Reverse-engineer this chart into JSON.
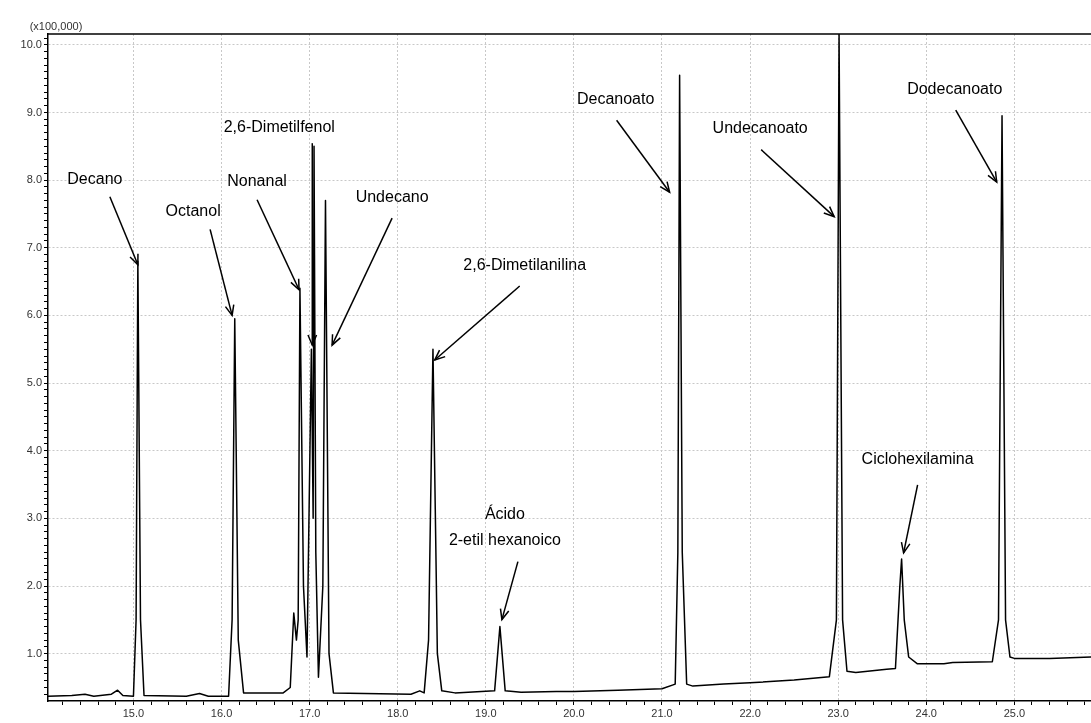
{
  "chart_data": {
    "type": "line",
    "ylabel": "(x100,000)",
    "xlim": [
      14.03,
      25.87
    ],
    "ylim": [
      0.3,
      10.16
    ],
    "xticks": [
      {
        "value": 14.2,
        "label": null
      },
      {
        "value": 14.4,
        "label": null
      },
      {
        "value": 14.6,
        "label": null
      },
      {
        "value": 14.8,
        "label": null
      },
      {
        "value": 15,
        "label": "15.0"
      },
      {
        "value": 15.2,
        "label": null
      },
      {
        "value": 15.4,
        "label": null
      },
      {
        "value": 15.6,
        "label": null
      },
      {
        "value": 15.8,
        "label": null
      },
      {
        "value": 16,
        "label": "16.0"
      },
      {
        "value": 16.2,
        "label": null
      },
      {
        "value": 16.4,
        "label": null
      },
      {
        "value": 16.6,
        "label": null
      },
      {
        "value": 16.8,
        "label": null
      },
      {
        "value": 17,
        "label": "17.0"
      },
      {
        "value": 17.2,
        "label": null
      },
      {
        "value": 17.4,
        "label": null
      },
      {
        "value": 17.6,
        "label": null
      },
      {
        "value": 17.8,
        "label": null
      },
      {
        "value": 18,
        "label": "18.0"
      },
      {
        "value": 18.2,
        "label": null
      },
      {
        "value": 18.4,
        "label": null
      },
      {
        "value": 18.6,
        "label": null
      },
      {
        "value": 18.8,
        "label": null
      },
      {
        "value": 19,
        "label": "19.0"
      },
      {
        "value": 19.2,
        "label": null
      },
      {
        "value": 19.4,
        "label": null
      },
      {
        "value": 19.6,
        "label": null
      },
      {
        "value": 19.8,
        "label": null
      },
      {
        "value": 20,
        "label": "20.0"
      },
      {
        "value": 20.2,
        "label": null
      },
      {
        "value": 20.4,
        "label": null
      },
      {
        "value": 20.6,
        "label": null
      },
      {
        "value": 20.8,
        "label": null
      },
      {
        "value": 21,
        "label": "21.0"
      },
      {
        "value": 21.2,
        "label": null
      },
      {
        "value": 21.4,
        "label": null
      },
      {
        "value": 21.6,
        "label": null
      },
      {
        "value": 21.8,
        "label": null
      },
      {
        "value": 22,
        "label": "22.0"
      },
      {
        "value": 22.2,
        "label": null
      },
      {
        "value": 22.4,
        "label": null
      },
      {
        "value": 22.6,
        "label": null
      },
      {
        "value": 22.8,
        "label": null
      },
      {
        "value": 23,
        "label": "23.0"
      },
      {
        "value": 23.2,
        "label": null
      },
      {
        "value": 23.4,
        "label": null
      },
      {
        "value": 23.6,
        "label": null
      },
      {
        "value": 23.8,
        "label": null
      },
      {
        "value": 24,
        "label": "24.0"
      },
      {
        "value": 24.2,
        "label": null
      },
      {
        "value": 24.4,
        "label": null
      },
      {
        "value": 24.6,
        "label": null
      },
      {
        "value": 24.8,
        "label": null
      },
      {
        "value": 25,
        "label": "25.0"
      },
      {
        "value": 25.2,
        "label": null
      },
      {
        "value": 25.4,
        "label": null
      },
      {
        "value": 25.6,
        "label": null
      },
      {
        "value": 25.8,
        "label": null
      }
    ],
    "yticks": [
      {
        "value": 0.4,
        "label": null
      },
      {
        "value": 0.5,
        "label": null
      },
      {
        "value": 0.6,
        "label": null
      },
      {
        "value": 0.7,
        "label": null
      },
      {
        "value": 0.8,
        "label": null
      },
      {
        "value": 0.9,
        "label": null
      },
      {
        "value": 1,
        "label": "1.0"
      },
      {
        "value": 1.1,
        "label": null
      },
      {
        "value": 1.2,
        "label": null
      },
      {
        "value": 1.3,
        "label": null
      },
      {
        "value": 1.4,
        "label": null
      },
      {
        "value": 1.5,
        "label": null
      },
      {
        "value": 1.6,
        "label": null
      },
      {
        "value": 1.7,
        "label": null
      },
      {
        "value": 1.8,
        "label": null
      },
      {
        "value": 1.9,
        "label": null
      },
      {
        "value": 2,
        "label": "2.0"
      },
      {
        "value": 2.1,
        "label": null
      },
      {
        "value": 2.2,
        "label": null
      },
      {
        "value": 2.3,
        "label": null
      },
      {
        "value": 2.4,
        "label": null
      },
      {
        "value": 2.5,
        "label": null
      },
      {
        "value": 2.6,
        "label": null
      },
      {
        "value": 2.7,
        "label": null
      },
      {
        "value": 2.8,
        "label": null
      },
      {
        "value": 2.9,
        "label": null
      },
      {
        "value": 3,
        "label": "3.0"
      },
      {
        "value": 3.1,
        "label": null
      },
      {
        "value": 3.2,
        "label": null
      },
      {
        "value": 3.3,
        "label": null
      },
      {
        "value": 3.4,
        "label": null
      },
      {
        "value": 3.5,
        "label": null
      },
      {
        "value": 3.6,
        "label": null
      },
      {
        "value": 3.7,
        "label": null
      },
      {
        "value": 3.8,
        "label": null
      },
      {
        "value": 3.9,
        "label": null
      },
      {
        "value": 4,
        "label": "4.0"
      },
      {
        "value": 4.1,
        "label": null
      },
      {
        "value": 4.2,
        "label": null
      },
      {
        "value": 4.3,
        "label": null
      },
      {
        "value": 4.4,
        "label": null
      },
      {
        "value": 4.5,
        "label": null
      },
      {
        "value": 4.6,
        "label": null
      },
      {
        "value": 4.7,
        "label": null
      },
      {
        "value": 4.8,
        "label": null
      },
      {
        "value": 4.9,
        "label": null
      },
      {
        "value": 5,
        "label": "5.0"
      },
      {
        "value": 5.1,
        "label": null
      },
      {
        "value": 5.2,
        "label": null
      },
      {
        "value": 5.3,
        "label": null
      },
      {
        "value": 5.4,
        "label": null
      },
      {
        "value": 5.5,
        "label": null
      },
      {
        "value": 5.6,
        "label": null
      },
      {
        "value": 5.7,
        "label": null
      },
      {
        "value": 5.8,
        "label": null
      },
      {
        "value": 5.9,
        "label": null
      },
      {
        "value": 6,
        "label": "6.0"
      },
      {
        "value": 6.1,
        "label": null
      },
      {
        "value": 6.2,
        "label": null
      },
      {
        "value": 6.3,
        "label": null
      },
      {
        "value": 6.4,
        "label": null
      },
      {
        "value": 6.5,
        "label": null
      },
      {
        "value": 6.6,
        "label": null
      },
      {
        "value": 6.7,
        "label": null
      },
      {
        "value": 6.8,
        "label": null
      },
      {
        "value": 6.9,
        "label": null
      },
      {
        "value": 7,
        "label": "7.0"
      },
      {
        "value": 7.1,
        "label": null
      },
      {
        "value": 7.2,
        "label": null
      },
      {
        "value": 7.3,
        "label": null
      },
      {
        "value": 7.4,
        "label": null
      },
      {
        "value": 7.5,
        "label": null
      },
      {
        "value": 7.6,
        "label": null
      },
      {
        "value": 7.7,
        "label": null
      },
      {
        "value": 7.8,
        "label": null
      },
      {
        "value": 7.9,
        "label": null
      },
      {
        "value": 8,
        "label": "8.0"
      },
      {
        "value": 8.1,
        "label": null
      },
      {
        "value": 8.2,
        "label": null
      },
      {
        "value": 8.3,
        "label": null
      },
      {
        "value": 8.4,
        "label": null
      },
      {
        "value": 8.5,
        "label": null
      },
      {
        "value": 8.6,
        "label": null
      },
      {
        "value": 8.7,
        "label": null
      },
      {
        "value": 8.8,
        "label": null
      },
      {
        "value": 8.9,
        "label": null
      },
      {
        "value": 9,
        "label": "9.0"
      },
      {
        "value": 9.1,
        "label": null
      },
      {
        "value": 9.2,
        "label": null
      },
      {
        "value": 9.3,
        "label": null
      },
      {
        "value": 9.4,
        "label": null
      },
      {
        "value": 9.5,
        "label": null
      },
      {
        "value": 9.6,
        "label": null
      },
      {
        "value": 9.7,
        "label": null
      },
      {
        "value": 9.8,
        "label": null
      },
      {
        "value": 9.9,
        "label": null
      },
      {
        "value": 10,
        "label": "10.0"
      },
      {
        "value": 10.1,
        "label": null
      }
    ],
    "grid": true,
    "marker": "none",
    "line_style": "solid",
    "series": [
      {
        "color": "#000000",
        "x": [
          14.03,
          14.3,
          14.45,
          14.55,
          14.75,
          14.82,
          14.88,
          15.0,
          15.03,
          15.05,
          15.08,
          15.12,
          15.6,
          15.75,
          15.85,
          16.08,
          16.12,
          16.15,
          16.19,
          16.25,
          16.7,
          16.78,
          16.82,
          16.85,
          16.87,
          16.89,
          16.93,
          16.97,
          17.02,
          17.04,
          17.05,
          17.07,
          17.1,
          17.15,
          17.18,
          17.22,
          17.27,
          18.15,
          18.25,
          18.3,
          18.35,
          18.4,
          18.45,
          18.5,
          18.65,
          19.1,
          19.16,
          19.22,
          19.4,
          19.8,
          20.0,
          20.5,
          21.0,
          21.15,
          21.18,
          21.2,
          21.23,
          21.28,
          21.35,
          21.7,
          22.0,
          22.5,
          22.9,
          22.98,
          23.01,
          23.05,
          23.1,
          23.2,
          23.55,
          23.65,
          23.7,
          23.72,
          23.75,
          23.8,
          23.9,
          24.2,
          24.3,
          24.75,
          24.82,
          24.86,
          24.9,
          24.95,
          25.0,
          25.4,
          25.87
        ],
        "values": [
          0.37,
          0.38,
          0.4,
          0.37,
          0.4,
          0.46,
          0.38,
          0.37,
          1.5,
          6.8,
          1.5,
          0.38,
          0.37,
          0.41,
          0.37,
          0.37,
          1.5,
          5.95,
          1.2,
          0.42,
          0.42,
          0.5,
          1.6,
          1.2,
          1.5,
          6.4,
          2.0,
          0.95,
          5.5,
          3.0,
          8.5,
          2.5,
          0.65,
          2.0,
          7.7,
          1.0,
          0.42,
          0.4,
          0.45,
          0.42,
          1.2,
          5.5,
          1.0,
          0.45,
          0.42,
          0.45,
          1.4,
          0.45,
          0.43,
          0.44,
          0.44,
          0.46,
          0.48,
          0.55,
          2.5,
          9.55,
          2.5,
          0.55,
          0.52,
          0.55,
          0.57,
          0.61,
          0.66,
          1.5,
          10.15,
          1.5,
          0.74,
          0.72,
          0.77,
          0.78,
          2.0,
          2.4,
          1.5,
          0.95,
          0.85,
          0.85,
          0.87,
          0.88,
          1.5,
          8.95,
          1.5,
          0.95,
          0.93,
          0.93,
          0.95
        ]
      }
    ],
    "annotations": [
      {
        "text": "Decano",
        "x": 15.05,
        "y": 6.75
      },
      {
        "text": "Octanol",
        "x": 16.12,
        "y": 6.0
      },
      {
        "text": "Nonanal",
        "x": 16.88,
        "y": 6.38
      },
      {
        "text": "2,6-Dimetilfenol",
        "x": 17.03,
        "y": 5.56
      },
      {
        "text": "Undecano",
        "x": 17.255,
        "y": 5.56
      },
      {
        "text": "2,6-Dimetilanilina",
        "x": 18.42,
        "y": 5.34
      },
      {
        "text": "Ácido\n2-etil hexanoico",
        "x": 19.16,
        "y": 1.4
      },
      {
        "text": "Decanoato",
        "x": 21.2,
        "y": 9.55
      },
      {
        "text": "Undecanoato",
        "x": 23.0,
        "y": 7.46
      },
      {
        "text": "Ciclohexilamina",
        "x": 23.72,
        "y": 2.4
      },
      {
        "text": "Dodecanoato",
        "x": 24.8,
        "y": 7.97
      }
    ]
  }
}
